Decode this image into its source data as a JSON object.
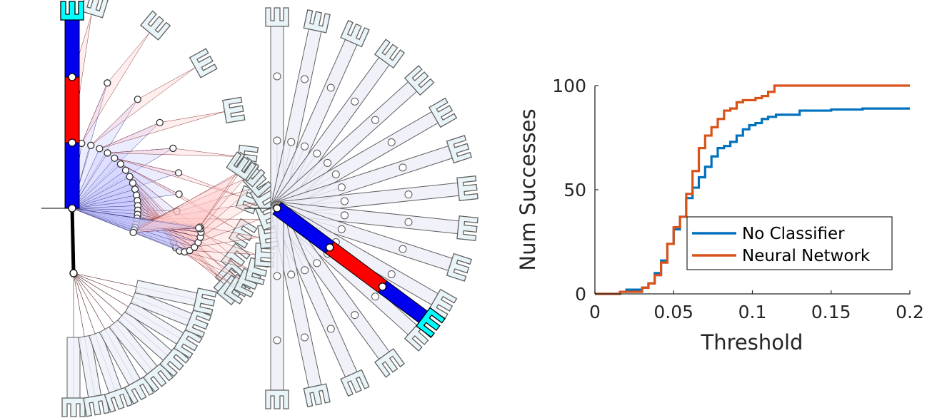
{
  "colors": {
    "link_blue": "#0000ee",
    "link_red": "#ff0000",
    "gripper": "#00ffff",
    "ghost_outline": "#606060",
    "ghost_gripper_fill": "#e6f3f6",
    "blue_tint": "#c8c8ff",
    "red_tint": "#ffc8c8",
    "series_blue": "#0072bd",
    "series_orange": "#d95319"
  },
  "left_panel": {
    "description_icon": "robot-arm-trajectory"
  },
  "middle_panel": {
    "description_icon": "robot-arm-fan"
  },
  "chart_data": {
    "type": "line",
    "xlabel": "Threshold",
    "ylabel": "Num Successes",
    "xlim": [
      0,
      0.2
    ],
    "ylim": [
      0,
      100
    ],
    "xticks": [
      "0",
      "0.05",
      "0.1",
      "0.15",
      "0.2"
    ],
    "yticks": [
      "0",
      "50",
      "100"
    ],
    "grid": false,
    "legend_position": "right-middle",
    "series": [
      {
        "name": "No Classifier",
        "color": "#0072bd",
        "x": [
          0,
          0.012,
          0.016,
          0.02,
          0.03,
          0.034,
          0.038,
          0.042,
          0.046,
          0.05,
          0.054,
          0.058,
          0.062,
          0.066,
          0.07,
          0.074,
          0.078,
          0.082,
          0.086,
          0.09,
          0.094,
          0.098,
          0.102,
          0.106,
          0.11,
          0.115,
          0.12,
          0.13,
          0.15,
          0.17,
          0.19,
          0.2
        ],
        "y": [
          0,
          0,
          1,
          2,
          3,
          5,
          10,
          16,
          24,
          31,
          37,
          46,
          51,
          56,
          61,
          66,
          70,
          71,
          73,
          76,
          79,
          81,
          82,
          84,
          85,
          86,
          86,
          88,
          88.5,
          89,
          89,
          89
        ]
      },
      {
        "name": "Neural Network",
        "color": "#d95319",
        "x": [
          0,
          0.012,
          0.016,
          0.02,
          0.03,
          0.034,
          0.038,
          0.042,
          0.046,
          0.05,
          0.054,
          0.058,
          0.062,
          0.066,
          0.07,
          0.074,
          0.078,
          0.082,
          0.086,
          0.09,
          0.094,
          0.098,
          0.102,
          0.106,
          0.11,
          0.114,
          0.12,
          0.15,
          0.2
        ],
        "y": [
          0,
          0,
          1,
          1,
          3,
          5,
          9,
          15,
          24,
          32,
          37,
          48,
          59,
          70,
          76,
          80,
          84,
          88,
          89,
          92,
          93,
          93,
          94,
          95,
          97,
          100,
          100,
          100,
          100
        ]
      }
    ]
  }
}
